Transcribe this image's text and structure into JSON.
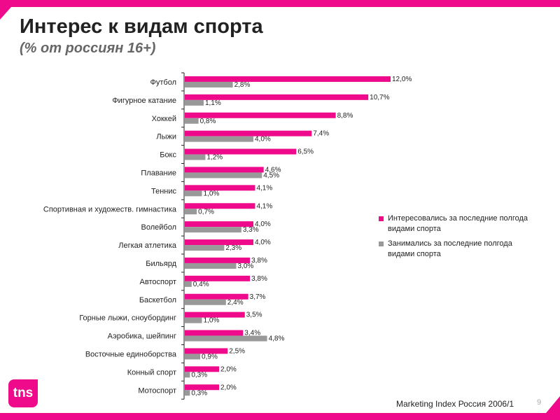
{
  "title": "Интерес к видам спорта",
  "subtitle": "(% от россиян 16+)",
  "footer": "Marketing Index Россия 2006/1",
  "page_number": "9",
  "logo": "tns",
  "colors": {
    "interest": "#ee0a8a",
    "practice": "#999999"
  },
  "chart_data": {
    "type": "bar",
    "orientation": "horizontal",
    "categories": [
      "Футбол",
      "Фигурное катание",
      "Хоккей",
      "Лыжи",
      "Бокс",
      "Плавание",
      "Теннис",
      "Спортивная и художеств. гимнастика",
      "Волейбол",
      "Легкая атлетика",
      "Бильярд",
      "Автоспорт",
      "Баскетбол",
      "Горные лыжи, сноубординг",
      "Аэробика, шейпинг",
      "Восточные единоборства",
      "Конный спорт",
      "Мотоспорт"
    ],
    "series": [
      {
        "name": "Интересовались за последние полгода видами спорта",
        "values": [
          12.0,
          10.7,
          8.8,
          7.4,
          6.5,
          4.6,
          4.1,
          4.1,
          4.0,
          4.0,
          3.8,
          3.8,
          3.7,
          3.5,
          3.4,
          2.5,
          2.0,
          2.0
        ],
        "labels": [
          "12,0%",
          "10,7%",
          "8,8%",
          "7,4%",
          "6,5%",
          "4,6%",
          "4,1%",
          "4,1%",
          "4,0%",
          "4,0%",
          "3,8%",
          "3,8%",
          "3,7%",
          "3,5%",
          "3,4%",
          "2,5%",
          "2,0%",
          "2,0%"
        ]
      },
      {
        "name": "Занимались за последние полгода видами спорта",
        "values": [
          2.8,
          1.1,
          0.8,
          4.0,
          1.2,
          4.5,
          1.0,
          0.7,
          3.3,
          2.3,
          3.0,
          0.4,
          2.4,
          1.0,
          4.8,
          0.9,
          0.3,
          0.3
        ],
        "labels": [
          "2,8%",
          "1,1%",
          "0,8%",
          "4,0%",
          "1,2%",
          "4,5%",
          "1,0%",
          "0,7%",
          "3,3%",
          "2,3%",
          "3,0%",
          "0,4%",
          "2,4%",
          "1,0%",
          "4,8%",
          "0,9%",
          "0,3%",
          "0,3%"
        ]
      }
    ],
    "xlim": [
      0,
      12
    ],
    "legend_position": "right"
  }
}
